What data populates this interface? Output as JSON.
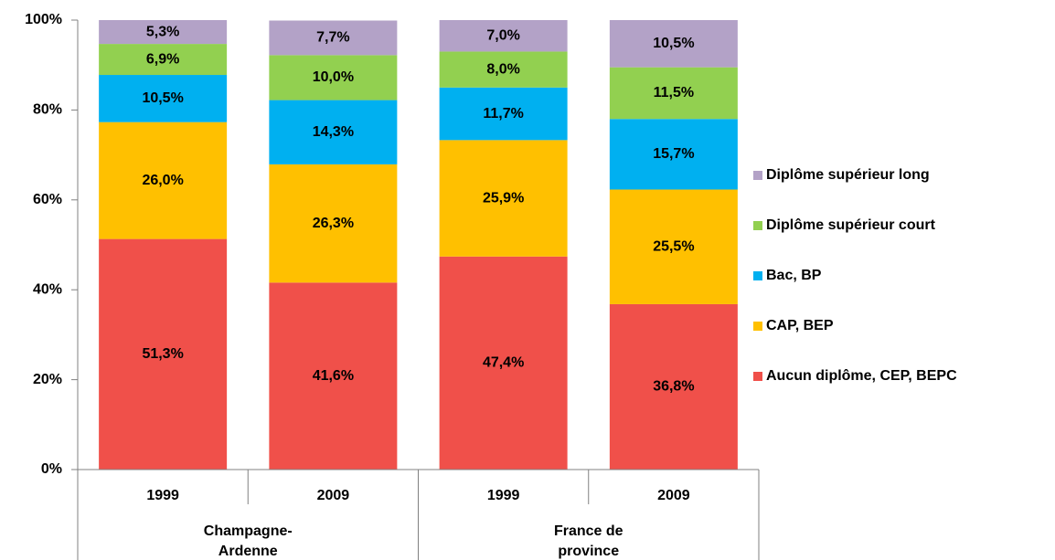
{
  "chart_data": {
    "type": "stacked_bar",
    "categories": [
      "1999",
      "2009",
      "1999",
      "2009"
    ],
    "groups": [
      [
        "Champagne-",
        "Ardenne"
      ],
      [
        "France de",
        "province"
      ]
    ],
    "series": [
      {
        "name": "Aucun diplôme, CEP, BEPC",
        "color": "#f0504a",
        "values": [
          51.3,
          41.6,
          47.4,
          36.8
        ],
        "value_labels": [
          "51,3%",
          "41,6%",
          "47,4%",
          "36,8%"
        ]
      },
      {
        "name": "CAP, BEP",
        "color": "#ffc000",
        "values": [
          26.0,
          26.3,
          25.9,
          25.5
        ],
        "value_labels": [
          "26,0%",
          "26,3%",
          "25,9%",
          "25,5%"
        ]
      },
      {
        "name": "Bac, BP",
        "color": "#00b0f0",
        "values": [
          10.5,
          14.3,
          11.7,
          15.7
        ],
        "value_labels": [
          "10,5%",
          "14,3%",
          "11,7%",
          "15,7%"
        ]
      },
      {
        "name": "Diplôme supérieur court",
        "color": "#92d050",
        "values": [
          6.9,
          10.0,
          8.0,
          11.5
        ],
        "value_labels": [
          "6,9%",
          "10,0%",
          "8,0%",
          "11,5%"
        ]
      },
      {
        "name": "Diplôme supérieur long",
        "color": "#b3a2c7",
        "values": [
          5.3,
          7.7,
          7.0,
          10.5
        ],
        "value_labels": [
          "5,3%",
          "7,7%",
          "7,0%",
          "10,5%"
        ]
      }
    ],
    "ylim": [
      0,
      100
    ],
    "yticks": [
      {
        "value": 0,
        "label": "0%"
      },
      {
        "value": 20,
        "label": "20%"
      },
      {
        "value": 40,
        "label": "40%"
      },
      {
        "value": 60,
        "label": "60%"
      },
      {
        "value": 80,
        "label": "80%"
      },
      {
        "value": 100,
        "label": "100%"
      }
    ],
    "legend": "right"
  }
}
